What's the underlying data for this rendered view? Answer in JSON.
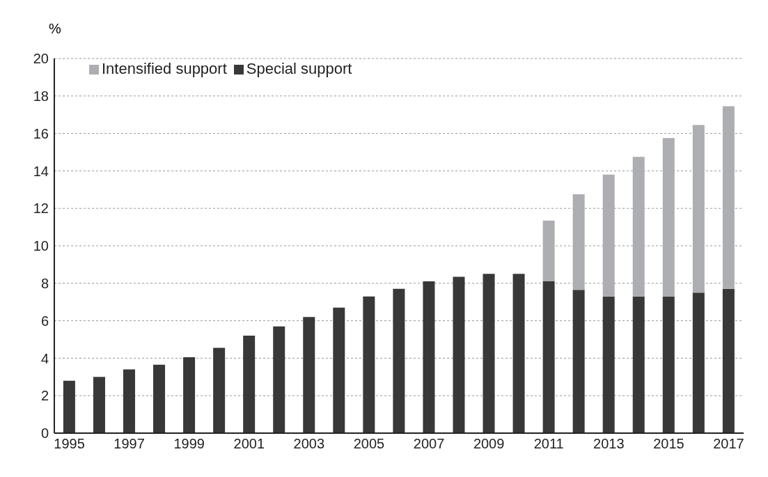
{
  "chart_data": {
    "type": "bar",
    "stacked": true,
    "ylabel": "%",
    "categories": [
      "1995",
      null,
      "1997",
      null,
      "1999",
      null,
      "2001",
      null,
      "2003",
      null,
      "2005",
      null,
      "2007",
      null,
      "2009",
      null,
      "2011",
      null,
      "2013",
      null,
      "2015",
      null,
      "2017"
    ],
    "series": [
      {
        "name": "Special support",
        "color": "#383838",
        "values": [
          2.8,
          3.0,
          3.4,
          3.65,
          4.05,
          4.55,
          5.2,
          5.7,
          6.2,
          6.7,
          7.3,
          7.7,
          8.1,
          8.35,
          8.5,
          8.5,
          8.1,
          7.65,
          7.3,
          7.3,
          7.3,
          7.5,
          7.7
        ]
      },
      {
        "name": "Intensified support",
        "color": "#adaeb1",
        "values": [
          null,
          null,
          null,
          null,
          null,
          null,
          null,
          null,
          null,
          null,
          null,
          null,
          null,
          null,
          null,
          null,
          3.25,
          5.1,
          6.5,
          7.45,
          8.45,
          8.95,
          9.75
        ]
      }
    ],
    "ylim": [
      0,
      20
    ],
    "yticks": [
      0,
      2,
      4,
      6,
      8,
      10,
      12,
      14,
      16,
      18,
      20
    ],
    "grid": "y",
    "legend": "top left"
  }
}
